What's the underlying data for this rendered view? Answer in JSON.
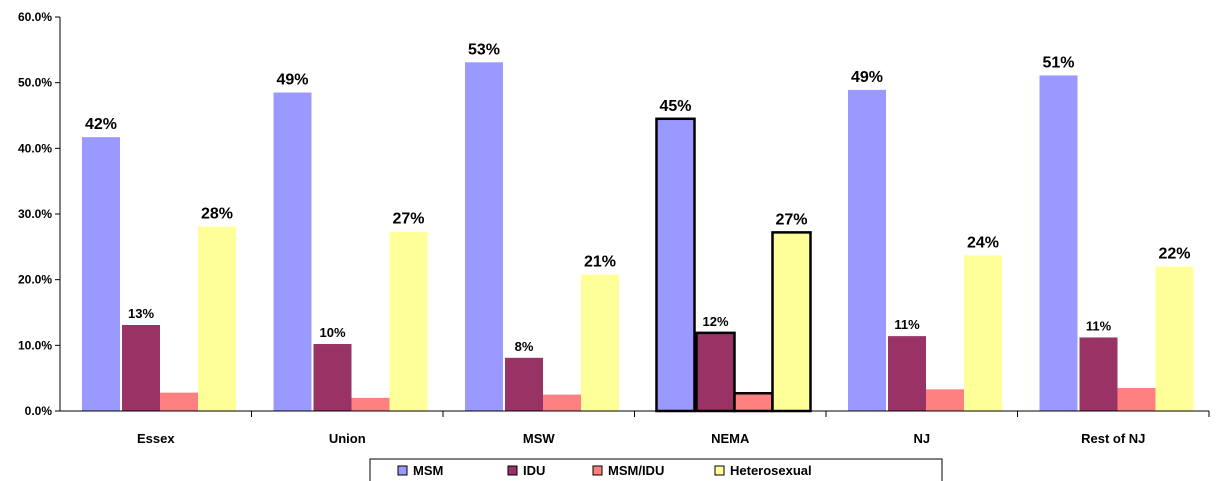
{
  "chart_data": {
    "type": "bar",
    "categories": [
      "Essex",
      "Union",
      "MSW",
      "NEMA",
      "NJ",
      "Rest of NJ"
    ],
    "ylim": [
      0,
      60
    ],
    "y_ticks": [
      "0.0%",
      "10.0%",
      "20.0%",
      "30.0%",
      "40.0%",
      "50.0%",
      "60.0%"
    ],
    "grid": false,
    "legend_position": "bottom",
    "highlighted_category": "NEMA",
    "series": [
      {
        "name": "MSM",
        "color": "#9999ff",
        "values": [
          41.7,
          48.5,
          53.1,
          44.5,
          48.9,
          51.1
        ],
        "labels": [
          "42%",
          "49%",
          "53%",
          "45%",
          "49%",
          "51%"
        ]
      },
      {
        "name": "IDU",
        "color": "#993366",
        "values": [
          13.1,
          10.2,
          8.1,
          11.9,
          11.4,
          11.2
        ],
        "labels": [
          "13%",
          "10%",
          "8%",
          "12%",
          "11%",
          "11%"
        ]
      },
      {
        "name": "MSM/IDU",
        "color": "#ff8080",
        "values": [
          2.8,
          2.0,
          2.5,
          2.7,
          3.3,
          3.5
        ],
        "labels": []
      },
      {
        "name": "Heterosexual",
        "color": "#ffff99",
        "values": [
          28.1,
          27.3,
          20.8,
          27.2,
          23.7,
          22.0
        ],
        "labels": [
          "28%",
          "27%",
          "21%",
          "27%",
          "24%",
          "22%"
        ]
      }
    ]
  }
}
